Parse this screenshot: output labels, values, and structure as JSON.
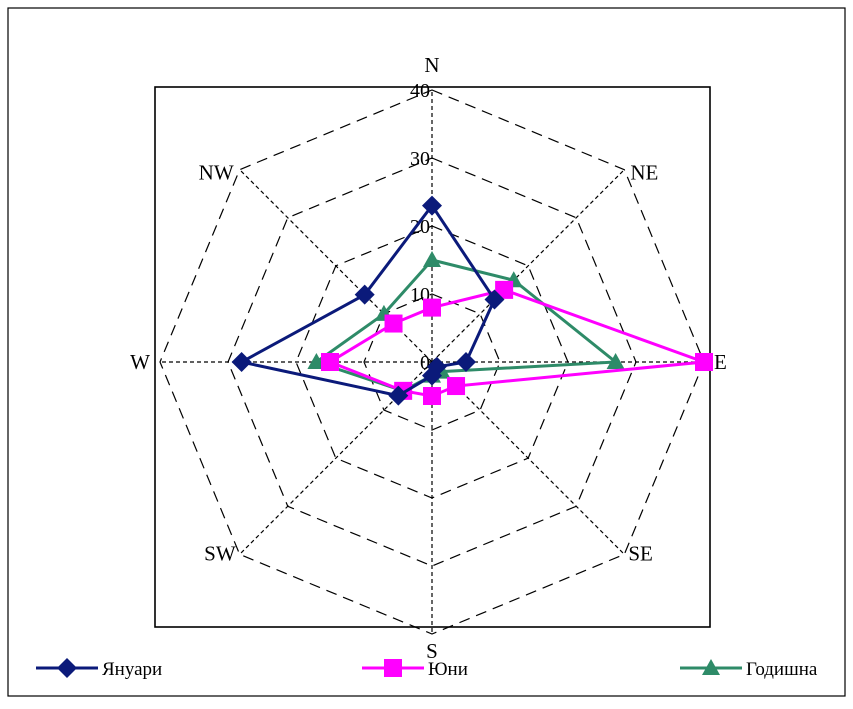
{
  "chart_data": {
    "type": "radar",
    "title": "",
    "directions": [
      "N",
      "NE",
      "E",
      "SE",
      "S",
      "SW",
      "W",
      "NW"
    ],
    "r_ticks": [
      "0",
      "10",
      "20",
      "30",
      "40"
    ],
    "r_range": [
      0,
      40
    ],
    "grid": true,
    "legend_position": "bottom",
    "series": [
      {
        "name": "Януари",
        "color": "#0b1a7a",
        "marker": "diamond",
        "values": [
          23,
          13,
          5,
          1,
          2,
          7,
          28,
          14
        ]
      },
      {
        "name": "Юни",
        "color": "#ff00ff",
        "marker": "square",
        "values": [
          8,
          15,
          40,
          5,
          5,
          6,
          15,
          8
        ]
      },
      {
        "name": "Годишна",
        "color": "#2e8b68",
        "marker": "triangle",
        "values": [
          15,
          17,
          27,
          2,
          2,
          6,
          17,
          10
        ]
      }
    ]
  }
}
